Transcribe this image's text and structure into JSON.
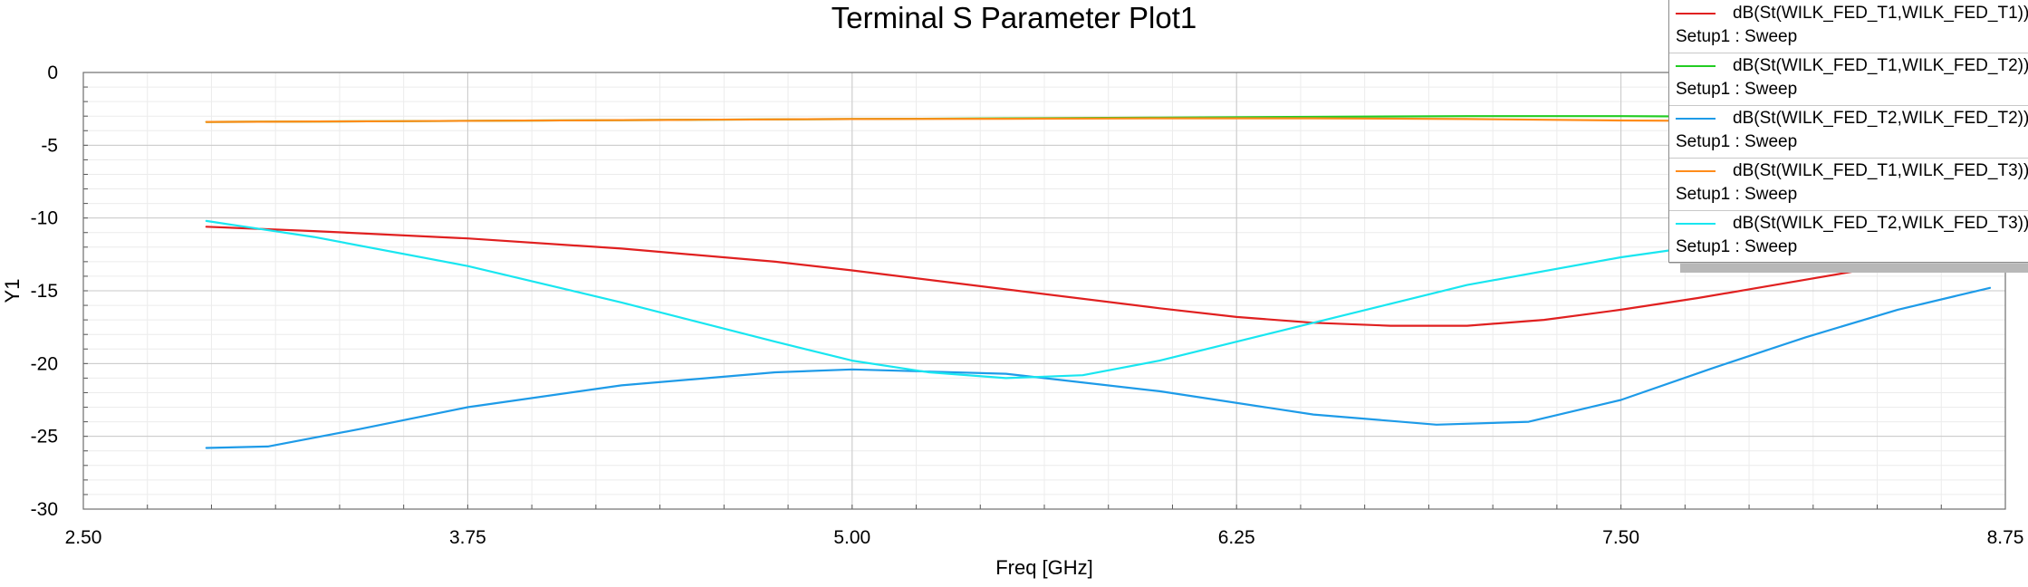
{
  "chart_data": {
    "type": "line",
    "title": "Terminal S Parameter Plot1",
    "xlabel": "Freq [GHz]",
    "ylabel": "Y1",
    "xlim": [
      2.5,
      8.75
    ],
    "ylim": [
      -30,
      0
    ],
    "x_ticks": [
      "2.50",
      "3.75",
      "5.00",
      "6.25",
      "7.50",
      "8.75"
    ],
    "y_ticks": [
      "0",
      "-5",
      "-10",
      "-15",
      "-20",
      "-25",
      "-30"
    ],
    "grid": true,
    "legend_position": "top-right",
    "series": [
      {
        "name": "dB(St(WILK_FED_T1,WILK_FED_T1))",
        "setup": "Setup1 : Sweep",
        "color": "#e02020",
        "x": [
          2.9,
          3.25,
          3.75,
          4.25,
          4.75,
          5.0,
          5.5,
          6.0,
          6.25,
          6.5,
          6.75,
          7.0,
          7.25,
          7.5,
          7.75,
          8.0,
          8.25,
          8.5,
          8.75
        ],
        "y": [
          -10.6,
          -10.9,
          -11.4,
          -12.1,
          -13.0,
          -13.6,
          -14.9,
          -16.2,
          -16.8,
          -17.2,
          -17.4,
          -17.4,
          -17.0,
          -16.3,
          -15.5,
          -14.6,
          -13.7,
          -12.8,
          -11.8
        ]
      },
      {
        "name": "dB(St(WILK_FED_T1,WILK_FED_T2))",
        "setup": "Setup1 : Sweep",
        "color": "#22cc22",
        "x": [
          2.9,
          3.5,
          4.0,
          4.5,
          5.0,
          5.5,
          6.0,
          6.5,
          7.0,
          7.5,
          8.0
        ],
        "y": [
          -3.4,
          -3.35,
          -3.3,
          -3.25,
          -3.2,
          -3.15,
          -3.1,
          -3.05,
          -3.0,
          -3.0,
          -3.05
        ]
      },
      {
        "name": "dB(St(WILK_FED_T2,WILK_FED_T2))",
        "setup": "Setup1 : Sweep",
        "color": "#1e9be8",
        "x": [
          2.9,
          3.1,
          3.4,
          3.75,
          4.25,
          4.75,
          5.0,
          5.5,
          6.0,
          6.5,
          6.9,
          7.2,
          7.5,
          7.8,
          8.1,
          8.4,
          8.7
        ],
        "y": [
          -25.8,
          -25.7,
          -24.5,
          -23.0,
          -21.5,
          -20.6,
          -20.4,
          -20.7,
          -21.9,
          -23.5,
          -24.2,
          -24.0,
          -22.5,
          -20.3,
          -18.2,
          -16.3,
          -14.8
        ]
      },
      {
        "name": "dB(St(WILK_FED_T1,WILK_FED_T3))",
        "setup": "Setup1 : Sweep",
        "color": "#ff8c1a",
        "x": [
          2.9,
          3.5,
          4.0,
          4.5,
          5.0,
          5.5,
          6.0,
          6.5,
          7.0,
          7.5,
          8.0
        ],
        "y": [
          -3.4,
          -3.35,
          -3.3,
          -3.25,
          -3.2,
          -3.18,
          -3.15,
          -3.15,
          -3.2,
          -3.3,
          -3.35
        ]
      },
      {
        "name": "dB(St(WILK_FED_T2,WILK_FED_T3))",
        "setup": "Setup1 : Sweep",
        "color": "#19e6f0",
        "x": [
          2.9,
          3.25,
          3.75,
          4.25,
          4.75,
          5.0,
          5.25,
          5.5,
          5.75,
          6.0,
          6.5,
          7.0,
          7.5,
          7.8,
          8.0
        ],
        "y": [
          -10.2,
          -11.3,
          -13.3,
          -15.8,
          -18.5,
          -19.8,
          -20.6,
          -21.0,
          -20.8,
          -19.8,
          -17.2,
          -14.6,
          -12.7,
          -11.8,
          -11.2
        ]
      }
    ]
  }
}
